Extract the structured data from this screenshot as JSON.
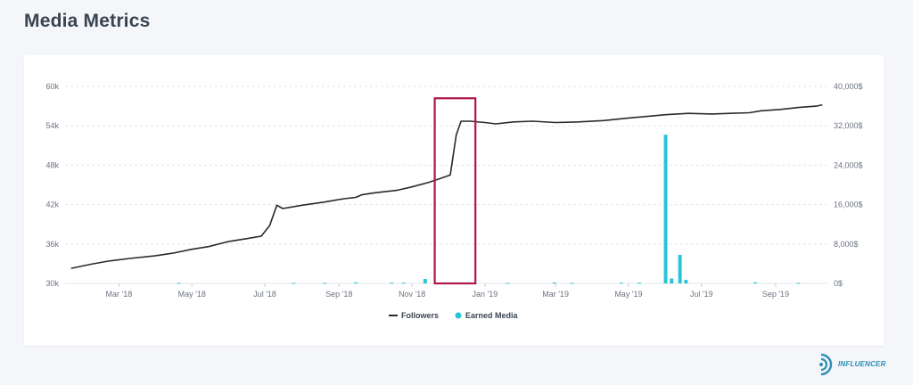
{
  "page": {
    "title": "Media Metrics"
  },
  "brand": {
    "name": "INFLUENCER"
  },
  "colors": {
    "followers": "#2a2a2a",
    "earned_media": "#29c4d6",
    "highlight_box": "#b0164a",
    "grid": "#e2e5ea"
  },
  "chart_data": {
    "type": "line",
    "x_tick_labels": [
      "Mar '18",
      "May '18",
      "Jul '18",
      "Sep '18",
      "Nov '18",
      "Jan '19",
      "Mar '19",
      "May '19",
      "Jul '19",
      "Sep '19"
    ],
    "x_ticks": [
      "2018-03-01",
      "2018-05-01",
      "2018-07-01",
      "2018-09-01",
      "2018-11-01",
      "2019-01-01",
      "2019-03-01",
      "2019-05-01",
      "2019-07-01",
      "2019-09-01"
    ],
    "xlim": [
      "2018-01-15",
      "2019-10-15"
    ],
    "y_left": {
      "ylim": [
        30000,
        60000
      ],
      "ticks": [
        30000,
        36000,
        42000,
        48000,
        54000,
        60000
      ],
      "tick_labels": [
        "30k",
        "36k",
        "42k",
        "48k",
        "54k",
        "60k"
      ]
    },
    "y_right": {
      "ylim": [
        0,
        40000
      ],
      "ticks": [
        0,
        8000,
        16000,
        24000,
        32000,
        40000
      ],
      "tick_labels": [
        "0$",
        "8,000$",
        "16,000$",
        "24,000$",
        "32,000$",
        "40,000$"
      ]
    },
    "grid": true,
    "legend_position": "bottom-center",
    "series": [
      {
        "name": "Followers",
        "type": "line",
        "axis": "left",
        "points": [
          [
            "2018-01-20",
            32300
          ],
          [
            "2018-02-05",
            32900
          ],
          [
            "2018-02-20",
            33400
          ],
          [
            "2018-03-10",
            33800
          ],
          [
            "2018-03-31",
            34200
          ],
          [
            "2018-04-15",
            34600
          ],
          [
            "2018-05-01",
            35200
          ],
          [
            "2018-05-15",
            35600
          ],
          [
            "2018-06-01",
            36400
          ],
          [
            "2018-06-15",
            36800
          ],
          [
            "2018-06-28",
            37200
          ],
          [
            "2018-07-05",
            38800
          ],
          [
            "2018-07-11",
            41900
          ],
          [
            "2018-07-16",
            41400
          ],
          [
            "2018-08-01",
            41900
          ],
          [
            "2018-08-20",
            42400
          ],
          [
            "2018-09-05",
            42900
          ],
          [
            "2018-09-15",
            43100
          ],
          [
            "2018-09-20",
            43500
          ],
          [
            "2018-10-01",
            43800
          ],
          [
            "2018-10-20",
            44200
          ],
          [
            "2018-11-01",
            44700
          ],
          [
            "2018-11-15",
            45400
          ],
          [
            "2018-11-25",
            46000
          ],
          [
            "2018-12-03",
            46500
          ],
          [
            "2018-12-08",
            52600
          ],
          [
            "2018-12-12",
            54700
          ],
          [
            "2018-12-20",
            54700
          ],
          [
            "2019-01-01",
            54500
          ],
          [
            "2019-01-10",
            54300
          ],
          [
            "2019-01-25",
            54600
          ],
          [
            "2019-02-10",
            54700
          ],
          [
            "2019-03-01",
            54500
          ],
          [
            "2019-03-20",
            54600
          ],
          [
            "2019-04-10",
            54800
          ],
          [
            "2019-05-01",
            55200
          ],
          [
            "2019-05-20",
            55500
          ],
          [
            "2019-06-01",
            55700
          ],
          [
            "2019-06-20",
            55900
          ],
          [
            "2019-07-10",
            55800
          ],
          [
            "2019-07-25",
            55900
          ],
          [
            "2019-08-10",
            56000
          ],
          [
            "2019-08-20",
            56300
          ],
          [
            "2019-09-05",
            56500
          ],
          [
            "2019-09-20",
            56800
          ],
          [
            "2019-10-05",
            57000
          ],
          [
            "2019-10-10",
            57200
          ]
        ]
      },
      {
        "name": "Earned Media",
        "type": "bar",
        "axis": "right",
        "points": [
          [
            "2018-04-20",
            100
          ],
          [
            "2018-07-25",
            100
          ],
          [
            "2018-08-20",
            100
          ],
          [
            "2018-09-15",
            200
          ],
          [
            "2018-10-15",
            150
          ],
          [
            "2018-10-25",
            150
          ],
          [
            "2018-11-12",
            900
          ],
          [
            "2018-12-20",
            100
          ],
          [
            "2019-01-20",
            100
          ],
          [
            "2019-02-28",
            200
          ],
          [
            "2019-03-15",
            100
          ],
          [
            "2019-04-25",
            150
          ],
          [
            "2019-05-10",
            150
          ],
          [
            "2019-06-01",
            30200
          ],
          [
            "2019-06-06",
            1000
          ],
          [
            "2019-06-13",
            5800
          ],
          [
            "2019-06-18",
            700
          ],
          [
            "2019-08-15",
            200
          ],
          [
            "2019-09-20",
            100
          ]
        ]
      }
    ],
    "highlight": {
      "x_range": [
        "2018-11-20",
        "2018-12-24"
      ],
      "y_range": [
        30000,
        58200
      ]
    }
  }
}
